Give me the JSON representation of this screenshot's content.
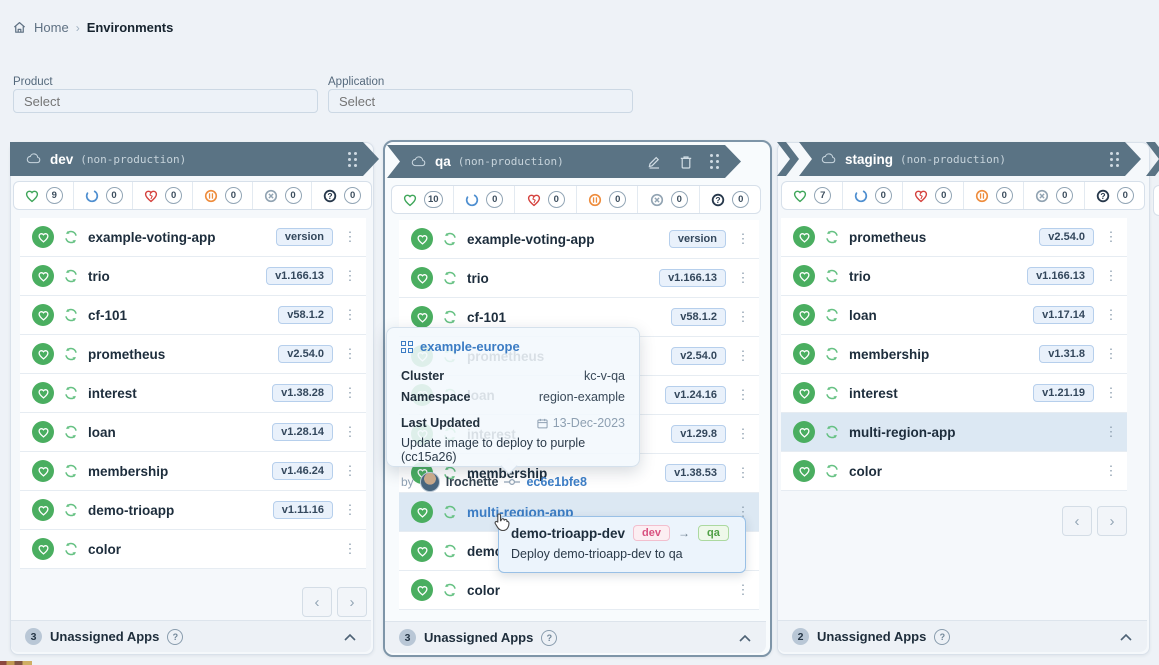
{
  "breadcrumb": {
    "home": "Home",
    "separator": "›",
    "current": "Environments"
  },
  "filters": {
    "product": {
      "label": "Product",
      "placeholder": "Select"
    },
    "application": {
      "label": "Application",
      "placeholder": "Select"
    }
  },
  "icons": {
    "kebab": "⋮",
    "help": "?",
    "prev": "‹",
    "next": "›"
  },
  "colors": {
    "banner": "#5a7384",
    "healthy": "#3fa65a",
    "progressing": "#4f8fd0",
    "degraded": "#d5423e",
    "suspended": "#ee8c3c",
    "failed": "#91a3b2",
    "unknown": "#26374a",
    "link": "#3b7cc4"
  },
  "columns": [
    {
      "name": "dev",
      "type_label": "(non-production)",
      "status_counts": [
        {
          "status": "healthy",
          "count": "9"
        },
        {
          "status": "progressing",
          "count": "0"
        },
        {
          "status": "degraded",
          "count": "0"
        },
        {
          "status": "suspended",
          "count": "0"
        },
        {
          "status": "failed",
          "count": "0"
        },
        {
          "status": "unknown",
          "count": "0"
        }
      ],
      "apps": [
        {
          "name": "example-voting-app",
          "version": "version"
        },
        {
          "name": "trio",
          "version": "v1.166.13"
        },
        {
          "name": "cf-101",
          "version": "v58.1.2"
        },
        {
          "name": "prometheus",
          "version": "v2.54.0"
        },
        {
          "name": "interest",
          "version": "v1.38.28"
        },
        {
          "name": "loan",
          "version": "v1.28.14"
        },
        {
          "name": "membership",
          "version": "v1.46.24"
        },
        {
          "name": "demo-trioapp",
          "version": "v1.11.16"
        },
        {
          "name": "color",
          "version": ""
        }
      ],
      "unassigned": {
        "count": "3",
        "label": "Unassigned Apps"
      }
    },
    {
      "name": "qa",
      "type_label": "(non-production)",
      "status_counts": [
        {
          "status": "healthy",
          "count": "10"
        },
        {
          "status": "progressing",
          "count": "0"
        },
        {
          "status": "degraded",
          "count": "0"
        },
        {
          "status": "suspended",
          "count": "0"
        },
        {
          "status": "failed",
          "count": "0"
        },
        {
          "status": "unknown",
          "count": "0"
        }
      ],
      "apps": [
        {
          "name": "example-voting-app",
          "version": "version"
        },
        {
          "name": "trio",
          "version": "v1.166.13"
        },
        {
          "name": "cf-101",
          "version": "v58.1.2"
        },
        {
          "name": "prometheus",
          "version": "v2.54.0"
        },
        {
          "name": "loan",
          "version": "v1.24.16"
        },
        {
          "name": "interest",
          "version": "v1.29.8"
        },
        {
          "name": "membership",
          "version": "v1.38.53"
        },
        {
          "name": "multi-region-app",
          "version": "",
          "highlighted": true,
          "link": true
        },
        {
          "name": "demo-trioapp-dev",
          "version": ""
        },
        {
          "name": "color",
          "version": ""
        }
      ],
      "unassigned": {
        "count": "3",
        "label": "Unassigned Apps"
      }
    },
    {
      "name": "staging",
      "type_label": "(non-production)",
      "status_counts": [
        {
          "status": "healthy",
          "count": "7"
        },
        {
          "status": "progressing",
          "count": "0"
        },
        {
          "status": "degraded",
          "count": "0"
        },
        {
          "status": "suspended",
          "count": "0"
        },
        {
          "status": "failed",
          "count": "0"
        },
        {
          "status": "unknown",
          "count": "0"
        }
      ],
      "apps": [
        {
          "name": "prometheus",
          "version": "v2.54.0"
        },
        {
          "name": "trio",
          "version": "v1.166.13"
        },
        {
          "name": "loan",
          "version": "v1.17.14"
        },
        {
          "name": "membership",
          "version": "v1.31.8"
        },
        {
          "name": "interest",
          "version": "v1.21.19"
        },
        {
          "name": "multi-region-app",
          "version": "",
          "highlighted": true
        },
        {
          "name": "color",
          "version": ""
        }
      ],
      "unassigned": {
        "count": "2",
        "label": "Unassigned Apps"
      }
    }
  ],
  "popover": {
    "app_name": "example-europe",
    "fields": [
      {
        "label": "Cluster",
        "value": "kc-v-qa"
      },
      {
        "label": "Namespace",
        "value": "region-example"
      }
    ],
    "last_updated": {
      "label": "Last Updated",
      "value": "13-Dec-2023"
    },
    "message": "Update image to deploy to purple (cc15a26)",
    "by_label": "by",
    "author": "lrochette",
    "commit": "ec6e1bfe8"
  },
  "deploy_tooltip": {
    "title": "demo-trioapp-dev",
    "from_env": "dev",
    "arrow": "→",
    "to_env": "qa",
    "description": "Deploy demo-trioapp-dev to qa"
  }
}
